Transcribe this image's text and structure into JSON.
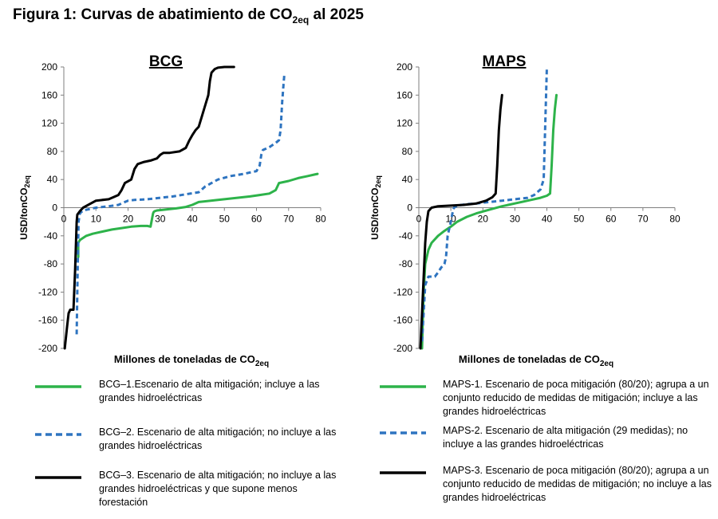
{
  "figure_title": {
    "prefix": "Figura 1:  Curvas de abatimiento de CO",
    "sub": "2eq",
    "suffix": " al 2025"
  },
  "chart_data": [
    {
      "type": "line",
      "title": "BCG",
      "xlabel_prefix": "Millones de toneladas de CO",
      "xlabel_sub": "2eq",
      "ylabel_prefix": "USD/tonCO",
      "ylabel_sub": "2eq",
      "xlim": [
        0,
        80
      ],
      "ylim": [
        -200,
        200
      ],
      "xticks": [
        0,
        10,
        20,
        30,
        40,
        50,
        60,
        70,
        80
      ],
      "yticks": [
        -200,
        -160,
        -120,
        -80,
        -40,
        0,
        40,
        80,
        120,
        160,
        200
      ],
      "grid": false,
      "series": [
        {
          "name": "BCG–1.Escenario de alta mitigación; incluye a las grandes hidroeléctricas",
          "color": "#2db34a",
          "dash": "solid",
          "x": [
            4.5,
            4.5,
            5,
            6,
            7,
            9,
            12,
            15,
            18,
            21,
            24,
            26,
            27,
            27.5,
            27.8,
            28,
            28.3,
            29,
            31,
            33,
            35,
            38,
            40,
            42,
            48,
            54,
            58,
            61,
            64,
            66,
            66.5,
            67,
            70,
            73,
            76,
            78,
            79
          ],
          "y": [
            -70,
            -50,
            -46,
            -43,
            -40,
            -37,
            -34,
            -31,
            -29,
            -27,
            -26,
            -26,
            -27,
            -15,
            -8,
            -6,
            -5,
            -4,
            -3,
            -2,
            -1,
            1,
            4,
            8,
            11,
            14,
            16,
            18,
            20,
            25,
            30,
            35,
            38,
            42,
            45,
            47,
            48
          ]
        },
        {
          "name": "BCG–2. Escenario de alta mitigación; no incluye a las grandes hidroeléctricas",
          "color": "#2e74c0",
          "dash": "dashed",
          "x": [
            4,
            4.3,
            4.6,
            5,
            6,
            8,
            10,
            14,
            17,
            18,
            19,
            20,
            22,
            26,
            30,
            34,
            38,
            42,
            44,
            46,
            48,
            52,
            56,
            60,
            61,
            61.5,
            62,
            64,
            66,
            67,
            67.5,
            68,
            68.5,
            68.7
          ],
          "y": [
            -180,
            -90,
            -20,
            -8,
            -4,
            -2,
            0,
            2,
            4,
            6,
            8,
            10,
            11,
            12,
            14,
            16,
            19,
            22,
            30,
            35,
            40,
            45,
            48,
            52,
            60,
            75,
            82,
            86,
            92,
            96,
            110,
            150,
            180,
            190
          ]
        },
        {
          "name": "BCG–3. Escenario de alta mitigación; no incluye a las grandes hidroeléctricas y que supone menos forestación",
          "color": "#000000",
          "dash": "solid",
          "x": [
            0.3,
            1,
            1.5,
            2,
            3,
            3.5,
            4,
            4.2,
            4.5,
            5,
            6,
            8,
            10,
            14,
            17,
            18,
            19,
            21,
            22,
            23,
            25,
            27,
            29,
            30,
            31,
            33,
            36,
            38,
            39,
            40,
            41,
            42,
            43,
            44,
            45,
            45.5,
            46,
            47,
            48,
            50,
            53
          ],
          "y": [
            -200,
            -170,
            -150,
            -145,
            -145,
            -90,
            -20,
            -10,
            -8,
            -5,
            0,
            5,
            10,
            12,
            18,
            25,
            35,
            40,
            55,
            62,
            65,
            67,
            70,
            75,
            78,
            78,
            80,
            85,
            95,
            103,
            110,
            115,
            130,
            145,
            160,
            180,
            192,
            197,
            199,
            200,
            200
          ]
        }
      ]
    },
    {
      "type": "line",
      "title": "MAPS",
      "xlabel_prefix": "Millones de toneladas de CO",
      "xlabel_sub": "2eq",
      "ylabel_prefix": "USD/tonCO",
      "ylabel_sub": "2eq",
      "xlim": [
        0,
        80
      ],
      "ylim": [
        -200,
        200
      ],
      "xticks": [
        0,
        10,
        20,
        30,
        40,
        50,
        60,
        70,
        80
      ],
      "yticks": [
        -200,
        -160,
        -120,
        -80,
        -40,
        0,
        40,
        80,
        120,
        160,
        200
      ],
      "grid": false,
      "series": [
        {
          "name": "MAPS-1. Escenario  de poca mitigación (80/20); agrupa a un conjunto reducido de medidas de mitigación; incluye a las grandes  hidroeléctricas",
          "color": "#2db34a",
          "dash": "solid",
          "x": [
            1,
            1.5,
            2,
            3,
            4,
            6,
            8,
            10,
            12,
            15,
            18,
            22,
            26,
            30,
            34,
            38,
            40,
            41,
            41.5,
            42,
            42.5,
            43
          ],
          "y": [
            -200,
            -120,
            -80,
            -60,
            -50,
            -40,
            -33,
            -27,
            -20,
            -13,
            -8,
            -3,
            2,
            6,
            10,
            14,
            17,
            20,
            60,
            110,
            140,
            160
          ]
        },
        {
          "name": "MAPS-2. Escenario de alta mitigación (29 medidas); no incluye a  las grandes hidroeléctricas",
          "color": "#2e74c0",
          "dash": "dashed",
          "x": [
            1,
            1.5,
            2,
            3,
            5,
            6,
            7,
            8,
            8.5,
            9,
            10,
            10.5,
            11,
            12,
            15,
            18,
            22,
            26,
            30,
            34,
            36,
            37,
            38,
            39,
            39.5,
            40
          ],
          "y": [
            -190,
            -150,
            -110,
            -98,
            -98,
            -92,
            -85,
            -80,
            -70,
            -40,
            -20,
            -8,
            0,
            3,
            5,
            6,
            8,
            10,
            12,
            14,
            18,
            22,
            26,
            40,
            120,
            200
          ]
        },
        {
          "name": "MAPS-3. Escenario  de poca mitigación (80/20); agrupa a un conjunto reducido de medidas de mitigación; no incluye a las grandes  hidroeléctricas",
          "color": "#000000",
          "dash": "solid",
          "x": [
            0.5,
            1,
            1.5,
            2,
            2.5,
            3,
            4,
            6,
            10,
            14,
            18,
            21,
            23,
            24,
            24.5,
            25,
            25.5,
            26
          ],
          "y": [
            -200,
            -150,
            -100,
            -50,
            -20,
            -5,
            0,
            2,
            3,
            4,
            6,
            10,
            15,
            20,
            60,
            110,
            140,
            160
          ]
        }
      ]
    }
  ]
}
